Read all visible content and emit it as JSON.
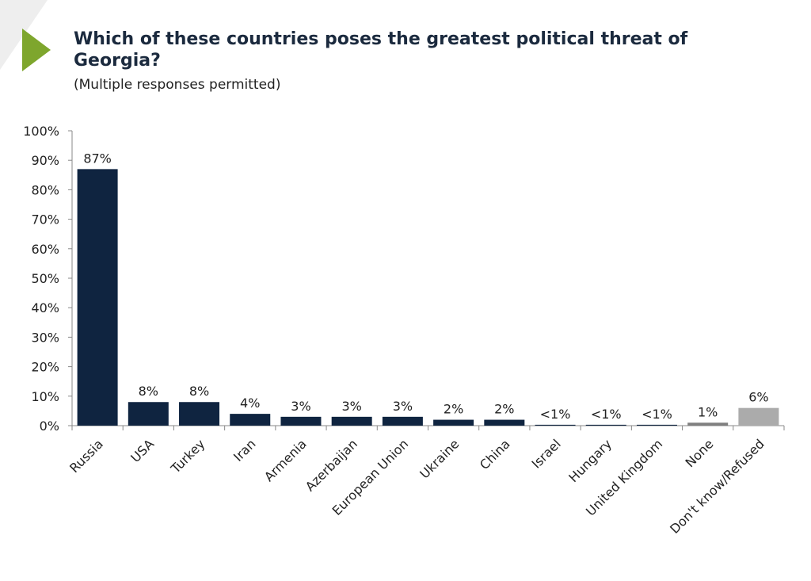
{
  "header": {
    "title": "Which of these countries poses the greatest political threat of Georgia?",
    "subtitle": "(Multiple responses permitted)"
  },
  "chart_data": {
    "type": "bar",
    "title": "Which of these countries poses the greatest political threat of Georgia?",
    "subtitle": "(Multiple responses permitted)",
    "xlabel": "",
    "ylabel": "",
    "ylim": [
      0,
      100
    ],
    "ytick_labels": [
      "0%",
      "10%",
      "20%",
      "30%",
      "40%",
      "50%",
      "60%",
      "70%",
      "80%",
      "90%",
      "100%"
    ],
    "categories": [
      "Russia",
      "USA",
      "Turkey",
      "Iran",
      "Armenia",
      "Azerbaijan",
      "European Union",
      "Ukraine",
      "China",
      "Israel",
      "Hungary",
      "United Kingdom",
      "None",
      "Don't know/Refused"
    ],
    "values": [
      87,
      8,
      8,
      4,
      3,
      3,
      3,
      2,
      2,
      0.3,
      0.3,
      0.3,
      1,
      6
    ],
    "data_labels": [
      "87%",
      "8%",
      "8%",
      "4%",
      "3%",
      "3%",
      "3%",
      "2%",
      "2%",
      "<1%",
      "<1%",
      "<1%",
      "1%",
      "6%"
    ],
    "colors": [
      "#0f2440",
      "#0f2440",
      "#0f2440",
      "#0f2440",
      "#0f2440",
      "#0f2440",
      "#0f2440",
      "#0f2440",
      "#0f2440",
      "#0f2440",
      "#0f2440",
      "#0f2440",
      "#7f7f7f",
      "#ababab"
    ],
    "grid": false,
    "legend": "none"
  }
}
